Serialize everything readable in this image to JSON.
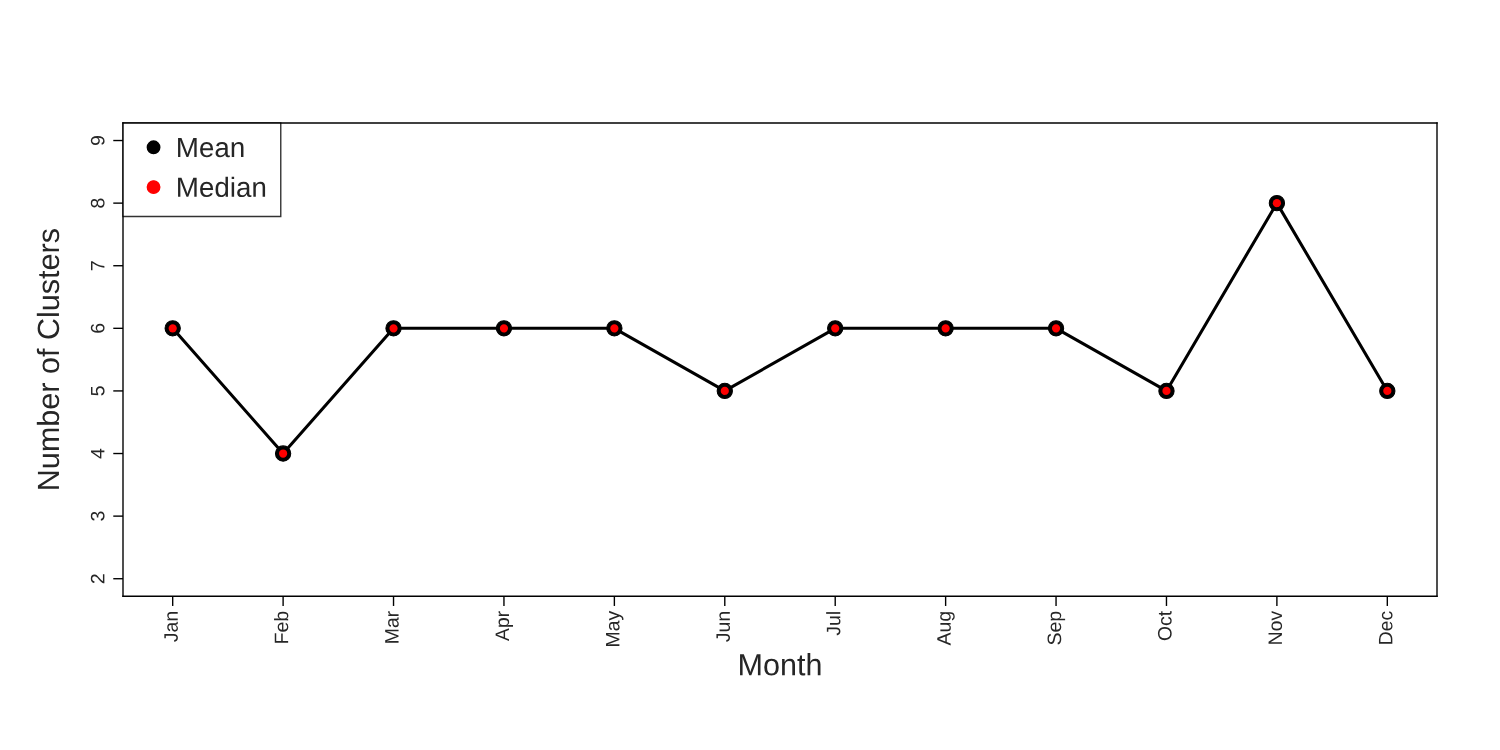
{
  "chart_data": {
    "type": "line",
    "xlabel": "Month",
    "ylabel": "Number of Clusters",
    "categories": [
      "Jan",
      "Feb",
      "Mar",
      "Apr",
      "May",
      "Jun",
      "Jul",
      "Aug",
      "Sep",
      "Oct",
      "Nov",
      "Dec"
    ],
    "series": [
      {
        "name": "Mean",
        "color": "#000000",
        "marker": "circle",
        "values": [
          6,
          4,
          6,
          6,
          6,
          5,
          6,
          6,
          6,
          5,
          8,
          5
        ]
      },
      {
        "name": "Median",
        "type": "scatter",
        "color": "#ff0000",
        "marker": "circle",
        "values": [
          6,
          4,
          6,
          6,
          6,
          5,
          6,
          6,
          6,
          5,
          8,
          5
        ]
      }
    ],
    "ylim": [
      1.72,
      9.28
    ],
    "yticks": [
      2,
      3,
      4,
      5,
      6,
      7,
      8,
      9
    ],
    "grid": false,
    "legend": "top left"
  }
}
